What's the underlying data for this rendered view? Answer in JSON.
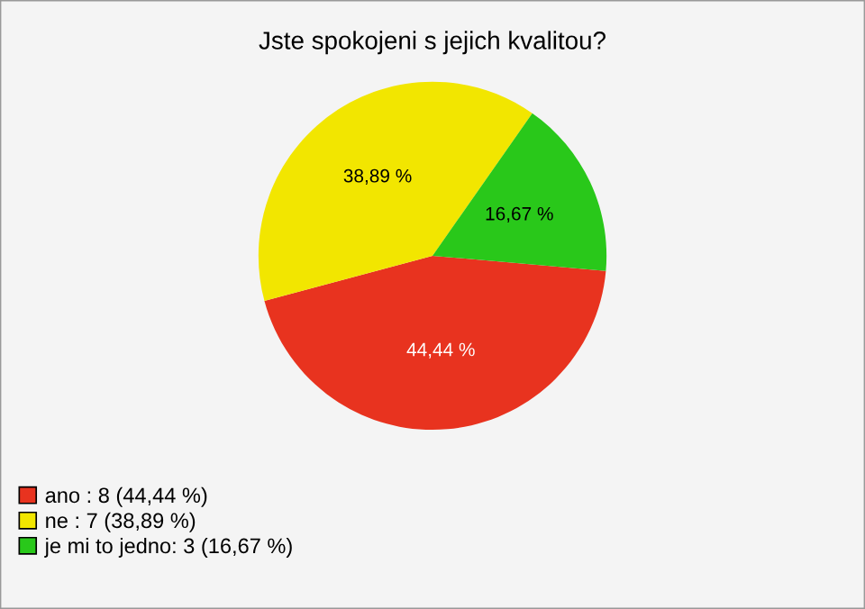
{
  "chart_data": {
    "type": "pie",
    "title": "Jste spokojeni s jejich kvalitou?",
    "categories": [
      "ano : 8 (44,44 %)",
      "ne : 7 (38,89 %)",
      "je mi to jedno: 3 (16,67 %)"
    ],
    "values": [
      44.44,
      38.89,
      16.67
    ],
    "value_labels": [
      "44,44 %",
      "38,89 %",
      "16,67 %"
    ],
    "colors": [
      "#e8331f",
      "#f2e600",
      "#29c81a"
    ],
    "legend": "bottom left"
  }
}
